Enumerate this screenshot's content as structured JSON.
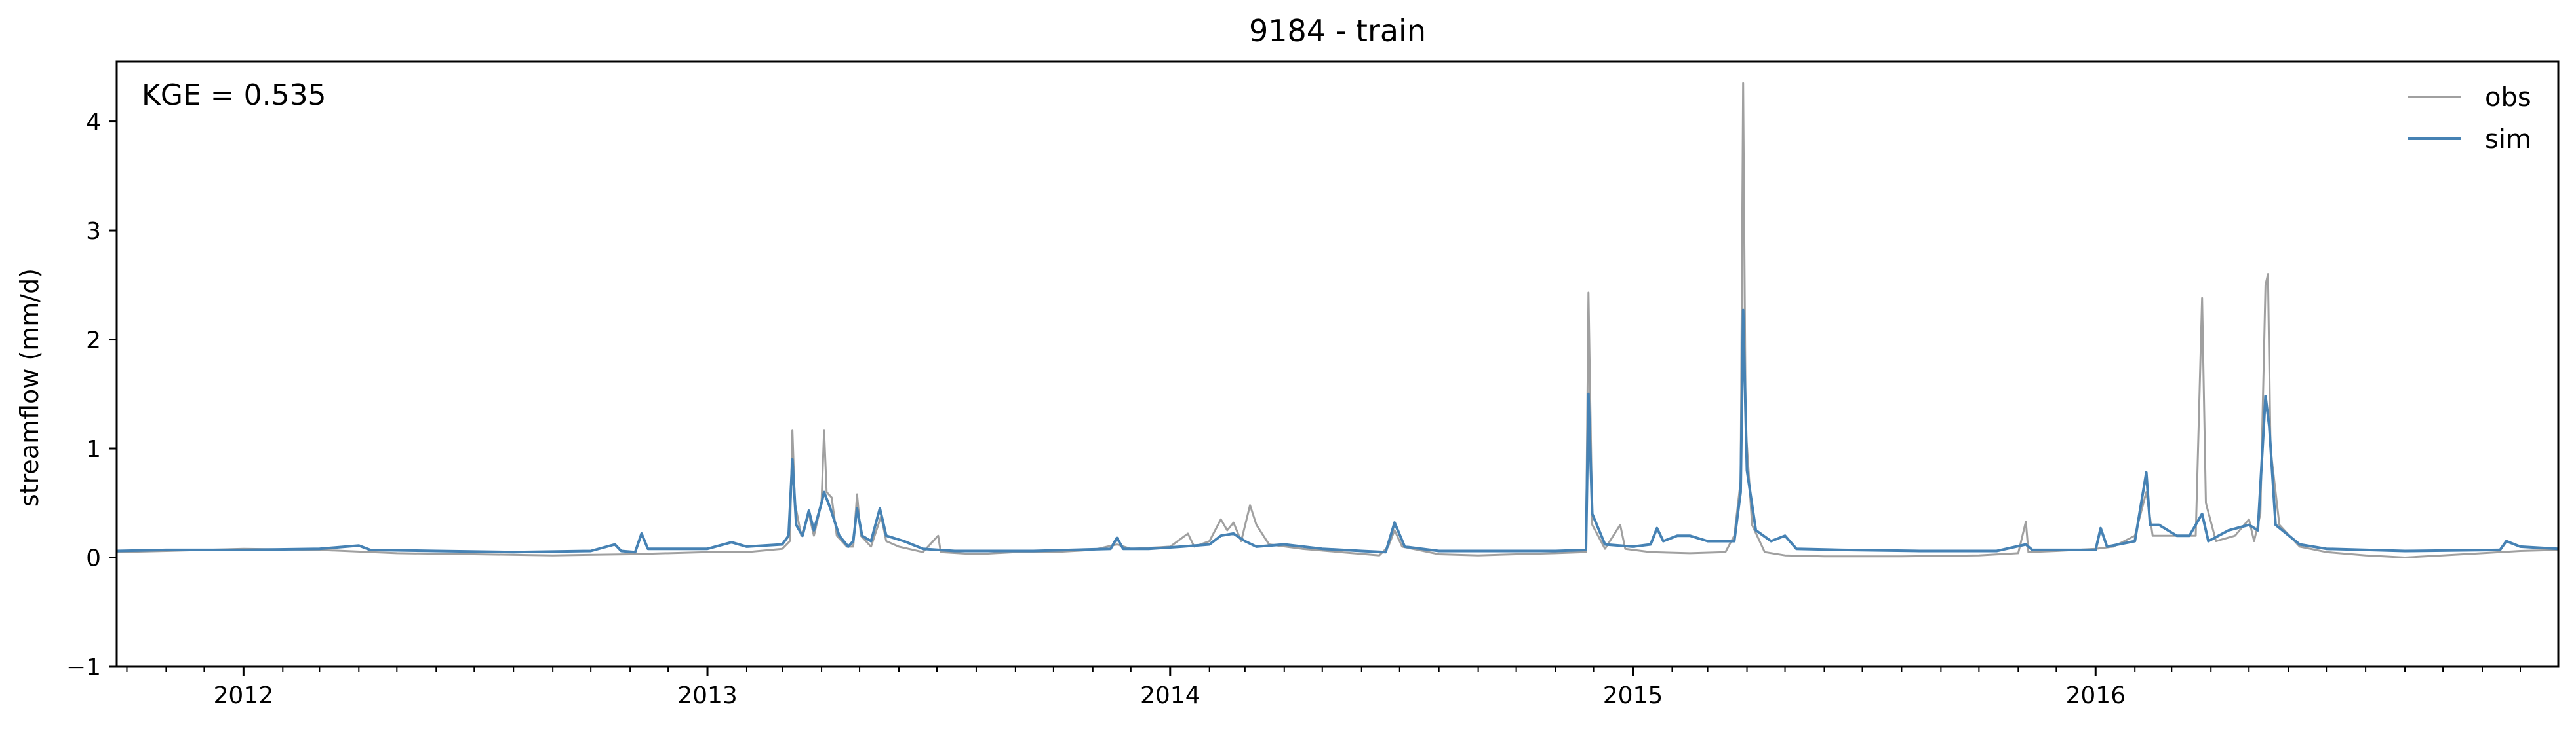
{
  "chart_data": {
    "type": "line",
    "title": "9184 - train",
    "xlabel": "",
    "ylabel": "streamflow (mm/d)",
    "annotation": "KGE = 0.535",
    "xlim": [
      "2011-09-23",
      "2016-12-31"
    ],
    "ylim": [
      -1,
      4.55
    ],
    "yticks": [
      -1,
      0,
      1,
      2,
      3,
      4
    ],
    "xticks": [
      {
        "date": "2012-01-01",
        "label": "2012"
      },
      {
        "date": "2013-01-01",
        "label": "2013"
      },
      {
        "date": "2014-01-01",
        "label": "2014"
      },
      {
        "date": "2015-01-01",
        "label": "2015"
      },
      {
        "date": "2016-01-01",
        "label": "2016"
      }
    ],
    "grid": false,
    "legend_position": "top-right",
    "series": [
      {
        "name": "obs",
        "color": "#a0a0a0",
        "points": [
          [
            "2011-09-23",
            0.05
          ],
          [
            "2011-11-01",
            0.06
          ],
          [
            "2011-12-01",
            0.07
          ],
          [
            "2012-01-01",
            0.08
          ],
          [
            "2012-03-01",
            0.07
          ],
          [
            "2012-05-01",
            0.04
          ],
          [
            "2012-07-01",
            0.03
          ],
          [
            "2012-09-01",
            0.02
          ],
          [
            "2012-11-01",
            0.03
          ],
          [
            "2013-01-01",
            0.05
          ],
          [
            "2013-02-01",
            0.05
          ],
          [
            "2013-03-01",
            0.08
          ],
          [
            "2013-03-07",
            0.15
          ],
          [
            "2013-03-09",
            1.17
          ],
          [
            "2013-03-11",
            0.5
          ],
          [
            "2013-03-16",
            0.2
          ],
          [
            "2013-03-22",
            0.4
          ],
          [
            "2013-03-26",
            0.2
          ],
          [
            "2013-04-01",
            0.5
          ],
          [
            "2013-04-03",
            1.17
          ],
          [
            "2013-04-05",
            0.6
          ],
          [
            "2013-04-09",
            0.55
          ],
          [
            "2013-04-13",
            0.2
          ],
          [
            "2013-04-21",
            0.1
          ],
          [
            "2013-04-26",
            0.1
          ],
          [
            "2013-04-29",
            0.58
          ],
          [
            "2013-05-02",
            0.2
          ],
          [
            "2013-05-10",
            0.1
          ],
          [
            "2013-05-18",
            0.38
          ],
          [
            "2013-05-22",
            0.15
          ],
          [
            "2013-06-01",
            0.1
          ],
          [
            "2013-06-20",
            0.05
          ],
          [
            "2013-07-02",
            0.2
          ],
          [
            "2013-07-04",
            0.05
          ],
          [
            "2013-08-01",
            0.03
          ],
          [
            "2013-09-01",
            0.05
          ],
          [
            "2013-10-01",
            0.05
          ],
          [
            "2013-11-01",
            0.07
          ],
          [
            "2013-11-20",
            0.12
          ],
          [
            "2013-12-01",
            0.08
          ],
          [
            "2014-01-01",
            0.1
          ],
          [
            "2014-01-15",
            0.22
          ],
          [
            "2014-01-20",
            0.1
          ],
          [
            "2014-02-01",
            0.15
          ],
          [
            "2014-02-10",
            0.35
          ],
          [
            "2014-02-15",
            0.25
          ],
          [
            "2014-02-20",
            0.32
          ],
          [
            "2014-02-26",
            0.15
          ],
          [
            "2014-03-05",
            0.48
          ],
          [
            "2014-03-10",
            0.3
          ],
          [
            "2014-03-20",
            0.12
          ],
          [
            "2014-04-15",
            0.08
          ],
          [
            "2014-05-15",
            0.05
          ],
          [
            "2014-06-15",
            0.02
          ],
          [
            "2014-06-22",
            0.1
          ],
          [
            "2014-06-27",
            0.25
          ],
          [
            "2014-07-03",
            0.1
          ],
          [
            "2014-08-01",
            0.03
          ],
          [
            "2014-09-01",
            0.02
          ],
          [
            "2014-10-01",
            0.03
          ],
          [
            "2014-11-01",
            0.04
          ],
          [
            "2014-11-25",
            0.05
          ],
          [
            "2014-11-27",
            2.43
          ],
          [
            "2014-11-30",
            0.3
          ],
          [
            "2014-12-10",
            0.08
          ],
          [
            "2014-12-22",
            0.3
          ],
          [
            "2014-12-26",
            0.08
          ],
          [
            "2015-01-15",
            0.05
          ],
          [
            "2015-02-15",
            0.04
          ],
          [
            "2015-03-15",
            0.05
          ],
          [
            "2015-03-22",
            0.2
          ],
          [
            "2015-03-27",
            0.7
          ],
          [
            "2015-03-29",
            4.35
          ],
          [
            "2015-03-31",
            1.2
          ],
          [
            "2015-04-05",
            0.3
          ],
          [
            "2015-04-15",
            0.05
          ],
          [
            "2015-05-01",
            0.02
          ],
          [
            "2015-06-01",
            0.01
          ],
          [
            "2015-08-01",
            0.01
          ],
          [
            "2015-10-01",
            0.02
          ],
          [
            "2015-11-01",
            0.04
          ],
          [
            "2015-11-07",
            0.33
          ],
          [
            "2015-11-09",
            0.05
          ],
          [
            "2015-12-01",
            0.06
          ],
          [
            "2016-01-01",
            0.08
          ],
          [
            "2016-01-15",
            0.1
          ],
          [
            "2016-02-01",
            0.2
          ],
          [
            "2016-02-10",
            0.6
          ],
          [
            "2016-02-15",
            0.2
          ],
          [
            "2016-03-01",
            0.2
          ],
          [
            "2016-03-20",
            0.2
          ],
          [
            "2016-03-25",
            2.38
          ],
          [
            "2016-03-28",
            0.5
          ],
          [
            "2016-04-05",
            0.15
          ],
          [
            "2016-04-20",
            0.2
          ],
          [
            "2016-05-01",
            0.35
          ],
          [
            "2016-05-05",
            0.15
          ],
          [
            "2016-05-10",
            0.4
          ],
          [
            "2016-05-14",
            2.5
          ],
          [
            "2016-05-16",
            2.6
          ],
          [
            "2016-05-18",
            1.0
          ],
          [
            "2016-05-25",
            0.3
          ],
          [
            "2016-06-10",
            0.1
          ],
          [
            "2016-07-01",
            0.05
          ],
          [
            "2016-08-01",
            0.02
          ],
          [
            "2016-09-01",
            0.0
          ],
          [
            "2016-10-01",
            0.02
          ],
          [
            "2016-11-01",
            0.04
          ],
          [
            "2016-12-01",
            0.06
          ],
          [
            "2016-12-31",
            0.07
          ]
        ]
      },
      {
        "name": "sim",
        "color": "#4682b4",
        "points": [
          [
            "2011-09-23",
            0.06
          ],
          [
            "2011-11-01",
            0.07
          ],
          [
            "2012-01-01",
            0.07
          ],
          [
            "2012-03-01",
            0.08
          ],
          [
            "2012-04-01",
            0.11
          ],
          [
            "2012-04-10",
            0.07
          ],
          [
            "2012-06-01",
            0.06
          ],
          [
            "2012-08-01",
            0.05
          ],
          [
            "2012-10-01",
            0.06
          ],
          [
            "2012-10-20",
            0.12
          ],
          [
            "2012-10-25",
            0.06
          ],
          [
            "2012-11-05",
            0.05
          ],
          [
            "2012-11-10",
            0.22
          ],
          [
            "2012-11-15",
            0.08
          ],
          [
            "2012-12-01",
            0.08
          ],
          [
            "2013-01-01",
            0.08
          ],
          [
            "2013-01-20",
            0.14
          ],
          [
            "2013-02-01",
            0.1
          ],
          [
            "2013-03-01",
            0.12
          ],
          [
            "2013-03-06",
            0.2
          ],
          [
            "2013-03-09",
            0.9
          ],
          [
            "2013-03-12",
            0.3
          ],
          [
            "2013-03-17",
            0.2
          ],
          [
            "2013-03-22",
            0.43
          ],
          [
            "2013-03-26",
            0.25
          ],
          [
            "2013-04-01",
            0.5
          ],
          [
            "2013-04-03",
            0.6
          ],
          [
            "2013-04-08",
            0.45
          ],
          [
            "2013-04-15",
            0.2
          ],
          [
            "2013-04-22",
            0.1
          ],
          [
            "2013-04-26",
            0.15
          ],
          [
            "2013-04-29",
            0.45
          ],
          [
            "2013-05-03",
            0.2
          ],
          [
            "2013-05-10",
            0.15
          ],
          [
            "2013-05-17",
            0.45
          ],
          [
            "2013-05-22",
            0.2
          ],
          [
            "2013-06-05",
            0.15
          ],
          [
            "2013-06-20",
            0.08
          ],
          [
            "2013-07-15",
            0.06
          ],
          [
            "2013-08-15",
            0.06
          ],
          [
            "2013-09-15",
            0.06
          ],
          [
            "2013-10-15",
            0.07
          ],
          [
            "2013-11-15",
            0.08
          ],
          [
            "2013-11-20",
            0.18
          ],
          [
            "2013-11-25",
            0.08
          ],
          [
            "2013-12-15",
            0.08
          ],
          [
            "2014-01-10",
            0.1
          ],
          [
            "2014-02-01",
            0.12
          ],
          [
            "2014-02-10",
            0.2
          ],
          [
            "2014-02-20",
            0.22
          ],
          [
            "2014-03-01",
            0.15
          ],
          [
            "2014-03-10",
            0.1
          ],
          [
            "2014-04-01",
            0.12
          ],
          [
            "2014-05-01",
            0.08
          ],
          [
            "2014-06-01",
            0.06
          ],
          [
            "2014-06-20",
            0.05
          ],
          [
            "2014-06-27",
            0.32
          ],
          [
            "2014-07-05",
            0.1
          ],
          [
            "2014-08-01",
            0.06
          ],
          [
            "2014-09-01",
            0.06
          ],
          [
            "2014-10-01",
            0.06
          ],
          [
            "2014-11-01",
            0.06
          ],
          [
            "2014-11-25",
            0.07
          ],
          [
            "2014-11-27",
            1.5
          ],
          [
            "2014-11-30",
            0.4
          ],
          [
            "2014-12-10",
            0.12
          ],
          [
            "2015-01-01",
            0.1
          ],
          [
            "2015-01-15",
            0.12
          ],
          [
            "2015-01-20",
            0.27
          ],
          [
            "2015-01-25",
            0.15
          ],
          [
            "2015-02-05",
            0.2
          ],
          [
            "2015-02-15",
            0.2
          ],
          [
            "2015-03-01",
            0.15
          ],
          [
            "2015-03-22",
            0.15
          ],
          [
            "2015-03-27",
            0.6
          ],
          [
            "2015-03-29",
            2.27
          ],
          [
            "2015-04-01",
            0.8
          ],
          [
            "2015-04-08",
            0.25
          ],
          [
            "2015-04-20",
            0.15
          ],
          [
            "2015-05-01",
            0.2
          ],
          [
            "2015-05-10",
            0.08
          ],
          [
            "2015-06-15",
            0.07
          ],
          [
            "2015-08-15",
            0.06
          ],
          [
            "2015-10-15",
            0.06
          ],
          [
            "2015-11-07",
            0.12
          ],
          [
            "2015-11-12",
            0.07
          ],
          [
            "2016-01-01",
            0.07
          ],
          [
            "2016-01-05",
            0.27
          ],
          [
            "2016-01-10",
            0.1
          ],
          [
            "2016-02-01",
            0.15
          ],
          [
            "2016-02-10",
            0.78
          ],
          [
            "2016-02-13",
            0.3
          ],
          [
            "2016-02-20",
            0.3
          ],
          [
            "2016-03-05",
            0.2
          ],
          [
            "2016-03-15",
            0.2
          ],
          [
            "2016-03-25",
            0.4
          ],
          [
            "2016-03-30",
            0.15
          ],
          [
            "2016-04-15",
            0.25
          ],
          [
            "2016-05-01",
            0.3
          ],
          [
            "2016-05-08",
            0.25
          ],
          [
            "2016-05-14",
            1.48
          ],
          [
            "2016-05-17",
            1.2
          ],
          [
            "2016-05-22",
            0.3
          ],
          [
            "2016-06-10",
            0.12
          ],
          [
            "2016-07-01",
            0.08
          ],
          [
            "2016-09-01",
            0.06
          ],
          [
            "2016-11-15",
            0.07
          ],
          [
            "2016-11-20",
            0.15
          ],
          [
            "2016-12-01",
            0.1
          ],
          [
            "2016-12-31",
            0.08
          ]
        ]
      }
    ]
  }
}
